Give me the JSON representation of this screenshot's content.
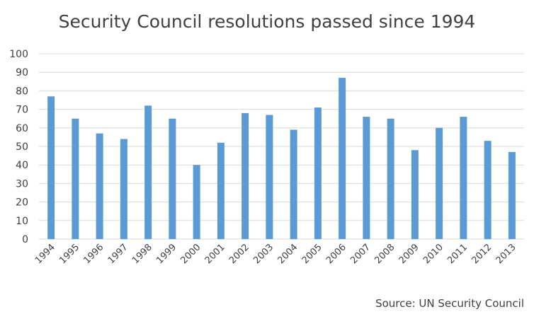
{
  "chart_data": {
    "type": "bar",
    "title": "Security Council resolutions passed since 1994",
    "source": "Source: UN Security Council",
    "categories": [
      "1994",
      "1995",
      "1996",
      "1997",
      "1998",
      "1999",
      "2000",
      "2001",
      "2002",
      "2003",
      "2004",
      "2005",
      "2006",
      "2007",
      "2008",
      "2009",
      "2010",
      "2011",
      "2012",
      "2013"
    ],
    "values": [
      77,
      65,
      57,
      54,
      72,
      65,
      40,
      52,
      68,
      67,
      59,
      71,
      87,
      66,
      65,
      48,
      60,
      66,
      53,
      47
    ],
    "ylim": [
      0,
      100
    ],
    "yticks": [
      0,
      10,
      20,
      30,
      40,
      50,
      60,
      70,
      80,
      90,
      100
    ],
    "grid": true,
    "bar_color": "#5B9BD5",
    "grid_color": "#D9D9D9"
  }
}
